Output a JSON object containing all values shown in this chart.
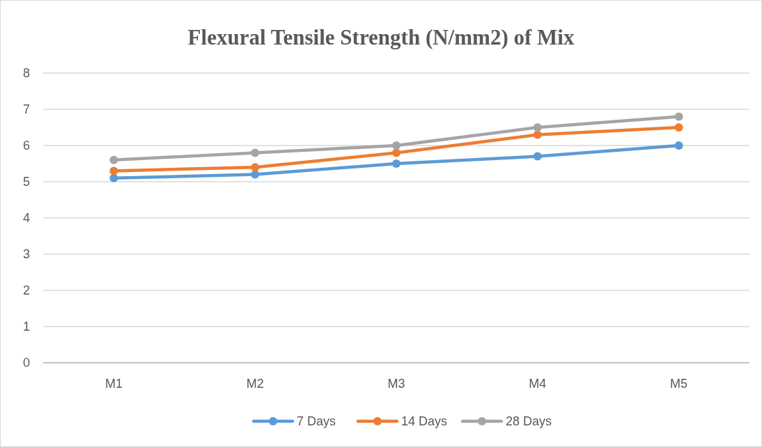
{
  "chart_data": {
    "type": "line",
    "title": "Flexural Tensile Strength  (N/mm2) of Mix",
    "categories": [
      "M1",
      "M2",
      "M3",
      "M4",
      "M5"
    ],
    "series": [
      {
        "name": "7 Days",
        "color": "#5b9bd5",
        "values": [
          5.1,
          5.2,
          5.5,
          5.7,
          6.0
        ]
      },
      {
        "name": "14 Days",
        "color": "#ed7d31",
        "values": [
          5.3,
          5.4,
          5.8,
          6.3,
          6.5
        ]
      },
      {
        "name": "28 Days",
        "color": "#a5a5a5",
        "values": [
          5.6,
          5.8,
          6.0,
          6.5,
          6.8
        ]
      }
    ],
    "ylim": [
      0,
      8
    ],
    "yticks": [
      0,
      1,
      2,
      3,
      4,
      5,
      6,
      7,
      8
    ],
    "grid": "y",
    "legend": "bottom",
    "marker": "circle",
    "line_style": "solid"
  }
}
